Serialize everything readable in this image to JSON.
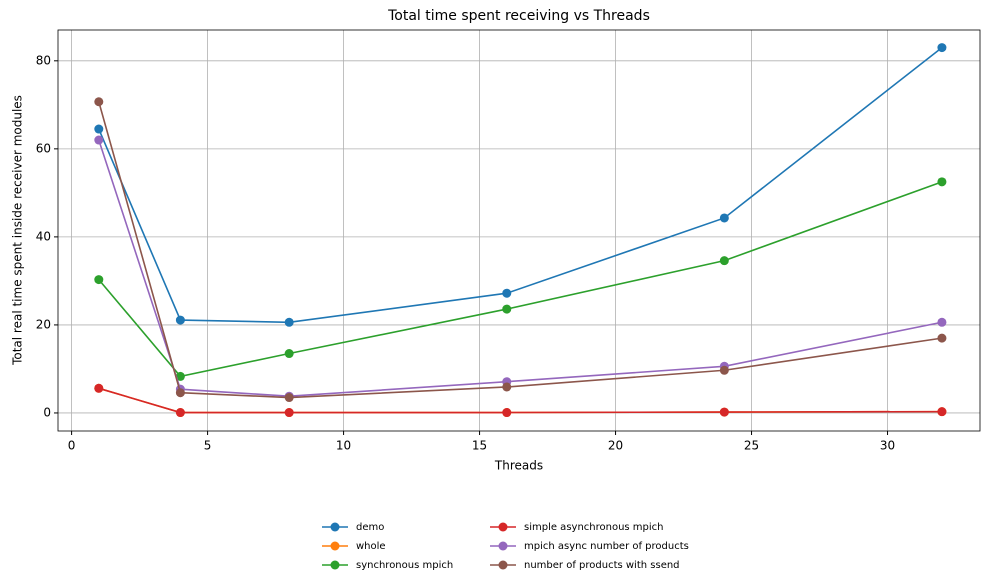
{
  "chart_data": {
    "type": "line",
    "title": "Total time spent receiving vs Threads",
    "x_label": "Threads",
    "y_label": "Total real time spent inside receiver modules",
    "x": [
      1,
      4,
      8,
      16,
      24,
      32
    ],
    "series": [
      {
        "name": "demo",
        "color": "#1f77b4",
        "values": [
          64.5,
          21.1,
          20.6,
          27.2,
          44.3,
          83.0
        ]
      },
      {
        "name": "whole",
        "color": "#ff7f0e",
        "values": [
          5.6,
          0.1,
          0.1,
          0.1,
          0.2,
          0.3
        ]
      },
      {
        "name": "synchronous mpich",
        "color": "#2ca02c",
        "values": [
          30.3,
          8.3,
          13.5,
          23.6,
          34.6,
          52.5
        ]
      },
      {
        "name": "simple asynchronous mpich",
        "color": "#d62728",
        "values": [
          5.6,
          0.1,
          0.1,
          0.1,
          0.2,
          0.3
        ]
      },
      {
        "name": "mpich async number of products",
        "color": "#9467bd",
        "values": [
          62.0,
          5.4,
          3.8,
          7.1,
          10.6,
          20.6
        ]
      },
      {
        "name": "number of products with ssend",
        "color": "#8c564b",
        "values": [
          70.7,
          4.6,
          3.5,
          5.9,
          9.7,
          17.0
        ]
      }
    ],
    "xlim": [
      -0.5,
      33.4
    ],
    "xticks": [
      0,
      5,
      10,
      15,
      20,
      25,
      30
    ],
    "ylim": [
      -4.1,
      87.0
    ],
    "yticks": [
      0,
      20,
      40,
      60,
      80
    ],
    "grid": true,
    "legend": "lower center"
  }
}
